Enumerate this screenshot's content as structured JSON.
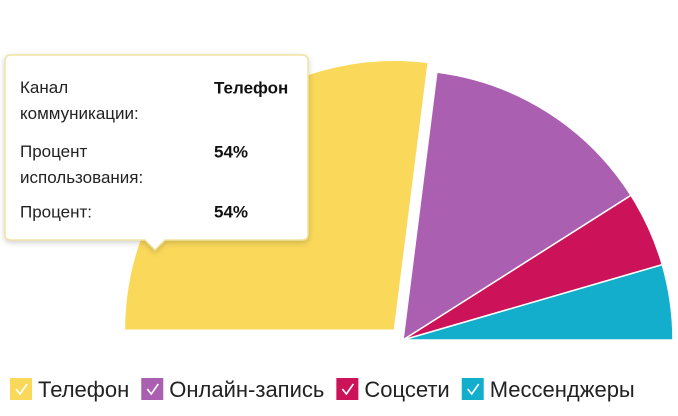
{
  "chart_data": {
    "type": "half-pie",
    "categories": [
      "Телефон",
      "Онлайн-запись",
      "Соцсети",
      "Мессенджеры"
    ],
    "values": [
      54,
      28,
      9,
      9
    ],
    "colors": [
      "#f9d85a",
      "#ab5fb0",
      "#cc1259",
      "#12aecb"
    ],
    "legend": "bottom",
    "tooltip": {
      "rows": [
        {
          "label": "Канал коммуникации:",
          "value": "Телефон"
        },
        {
          "label": "Процент использования:",
          "value": "54%"
        },
        {
          "label": "Процент:",
          "value": "54%"
        }
      ]
    }
  }
}
